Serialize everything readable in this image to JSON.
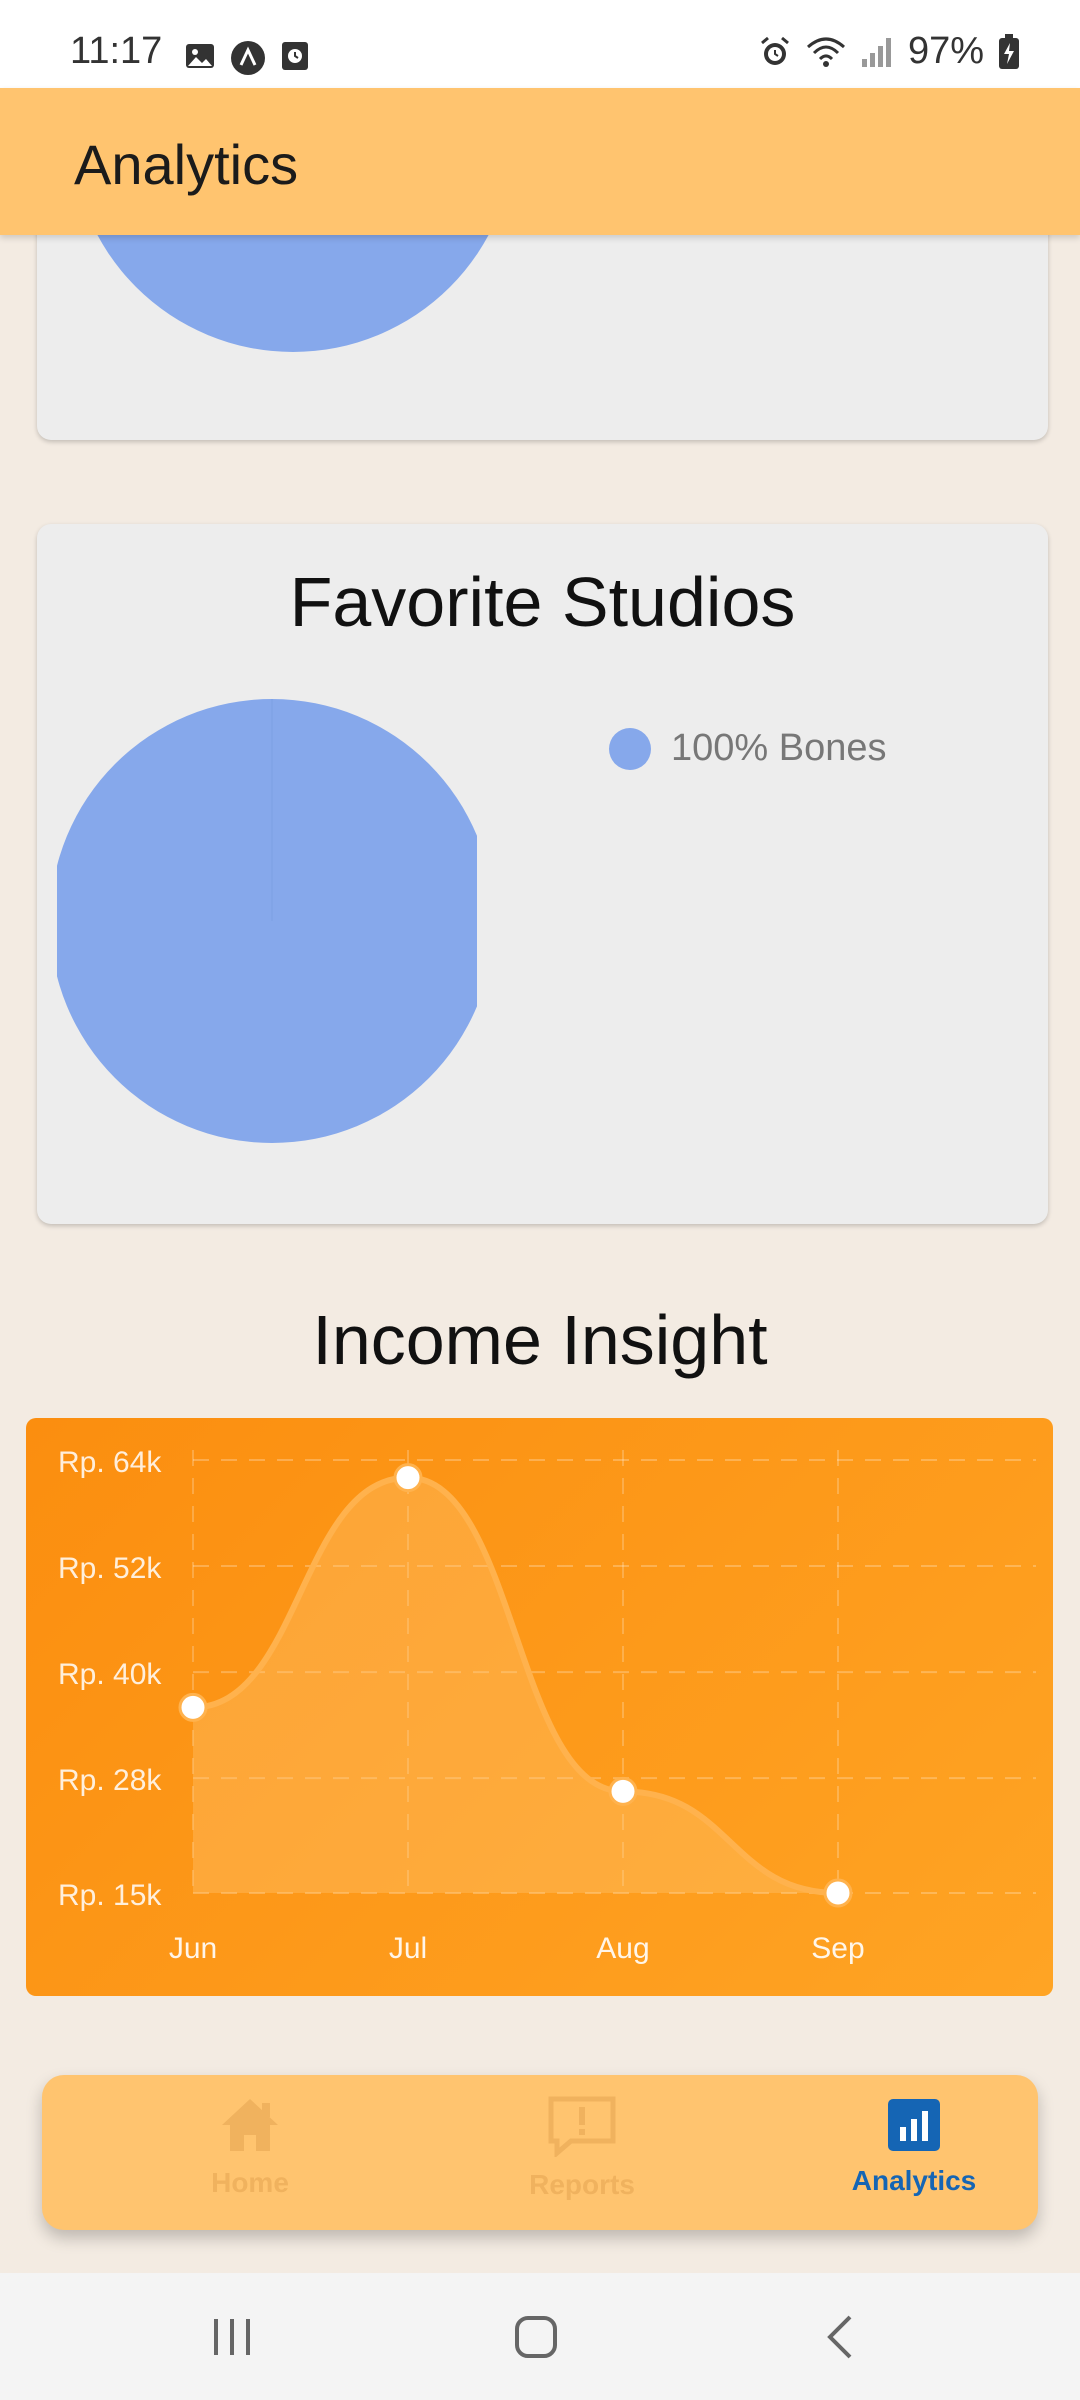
{
  "status_bar": {
    "time": "11:17",
    "battery": "97%"
  },
  "app_bar": {
    "title": "Analytics"
  },
  "favorite_studios": {
    "title": "Favorite Studios",
    "legend": [
      {
        "label": "100% Bones",
        "color": "#86a8eb",
        "value": 100
      }
    ]
  },
  "income_insight": {
    "title": "Income Insight"
  },
  "chart_data": {
    "type": "area",
    "categories": [
      "Jun",
      "Jul",
      "Aug",
      "Sep"
    ],
    "values": [
      36000,
      62000,
      26500,
      15000
    ],
    "y_tick_labels": [
      "Rp. 64k",
      "Rp. 52k",
      "Rp. 40k",
      "Rp. 28k",
      "Rp. 15k"
    ],
    "y_ticks": [
      64000,
      52000,
      40000,
      28000,
      15000
    ],
    "ylim": [
      15000,
      64000
    ],
    "grid": true,
    "smooth": true,
    "colors": {
      "background": "#fb8e0f",
      "line": "#ffb24d",
      "point": "#ffffff"
    }
  },
  "bottom_nav": {
    "items": [
      {
        "label": "Home",
        "icon": "home-icon",
        "active": false
      },
      {
        "label": "Reports",
        "icon": "report-icon",
        "active": false
      },
      {
        "label": "Analytics",
        "icon": "analytics-icon",
        "active": true
      }
    ],
    "active_color": "#1565b4",
    "inactive_color": "#f0b25e"
  }
}
